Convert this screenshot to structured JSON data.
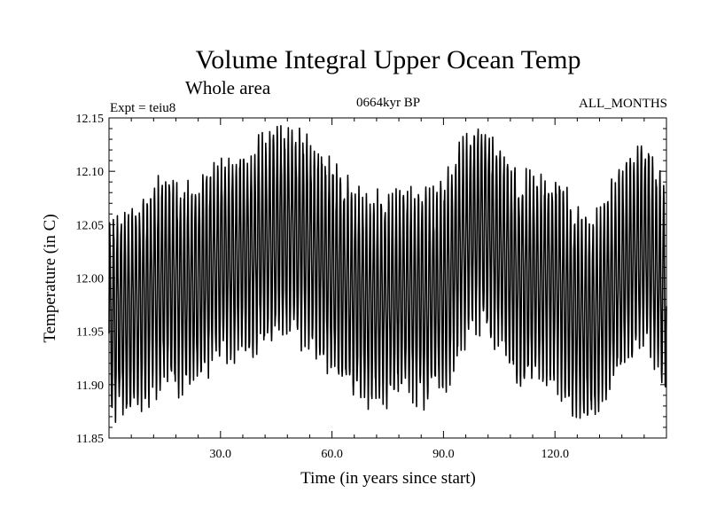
{
  "chart_data": {
    "type": "line",
    "title": "Volume Integral Upper Ocean Temp",
    "subtitle": "Whole area",
    "experiment_label": "Expt = teiu8",
    "period_label": "0664kyr BP",
    "months_label": "ALL_MONTHS",
    "xlabel": "Time (in years since start)",
    "ylabel": "Temperature (in C)",
    "xlim": [
      0,
      150
    ],
    "ylim": [
      11.85,
      12.15
    ],
    "x_ticks": [
      30,
      60,
      90,
      120
    ],
    "x_tick_labels": [
      "30.0",
      "60.0",
      "90.0",
      "120.0"
    ],
    "y_ticks": [
      11.85,
      11.9,
      11.95,
      12.0,
      12.05,
      12.1,
      12.15
    ],
    "y_tick_labels": [
      "11.85",
      "11.90",
      "11.95",
      "12.00",
      "12.05",
      "12.10",
      "12.15"
    ],
    "series_description": "monthly values, strong seasonal cycle",
    "seasonal_amplitude": 0.09,
    "annual_mean_envelope": {
      "x": [
        0,
        5,
        10,
        15,
        20,
        25,
        30,
        35,
        40,
        45,
        50,
        55,
        60,
        65,
        70,
        75,
        80,
        85,
        90,
        95,
        100,
        105,
        110,
        115,
        120,
        125,
        130,
        135,
        140,
        145,
        150
      ],
      "y": [
        11.96,
        11.97,
        11.98,
        12.0,
        11.99,
        12.0,
        12.02,
        12.02,
        12.03,
        12.04,
        12.04,
        12.03,
        12.01,
        11.99,
        11.98,
        11.98,
        11.99,
        11.98,
        11.99,
        12.03,
        12.05,
        12.03,
        12.0,
        12.0,
        12.0,
        11.97,
        11.96,
        11.99,
        12.02,
        12.03,
        11.98
      ]
    }
  }
}
